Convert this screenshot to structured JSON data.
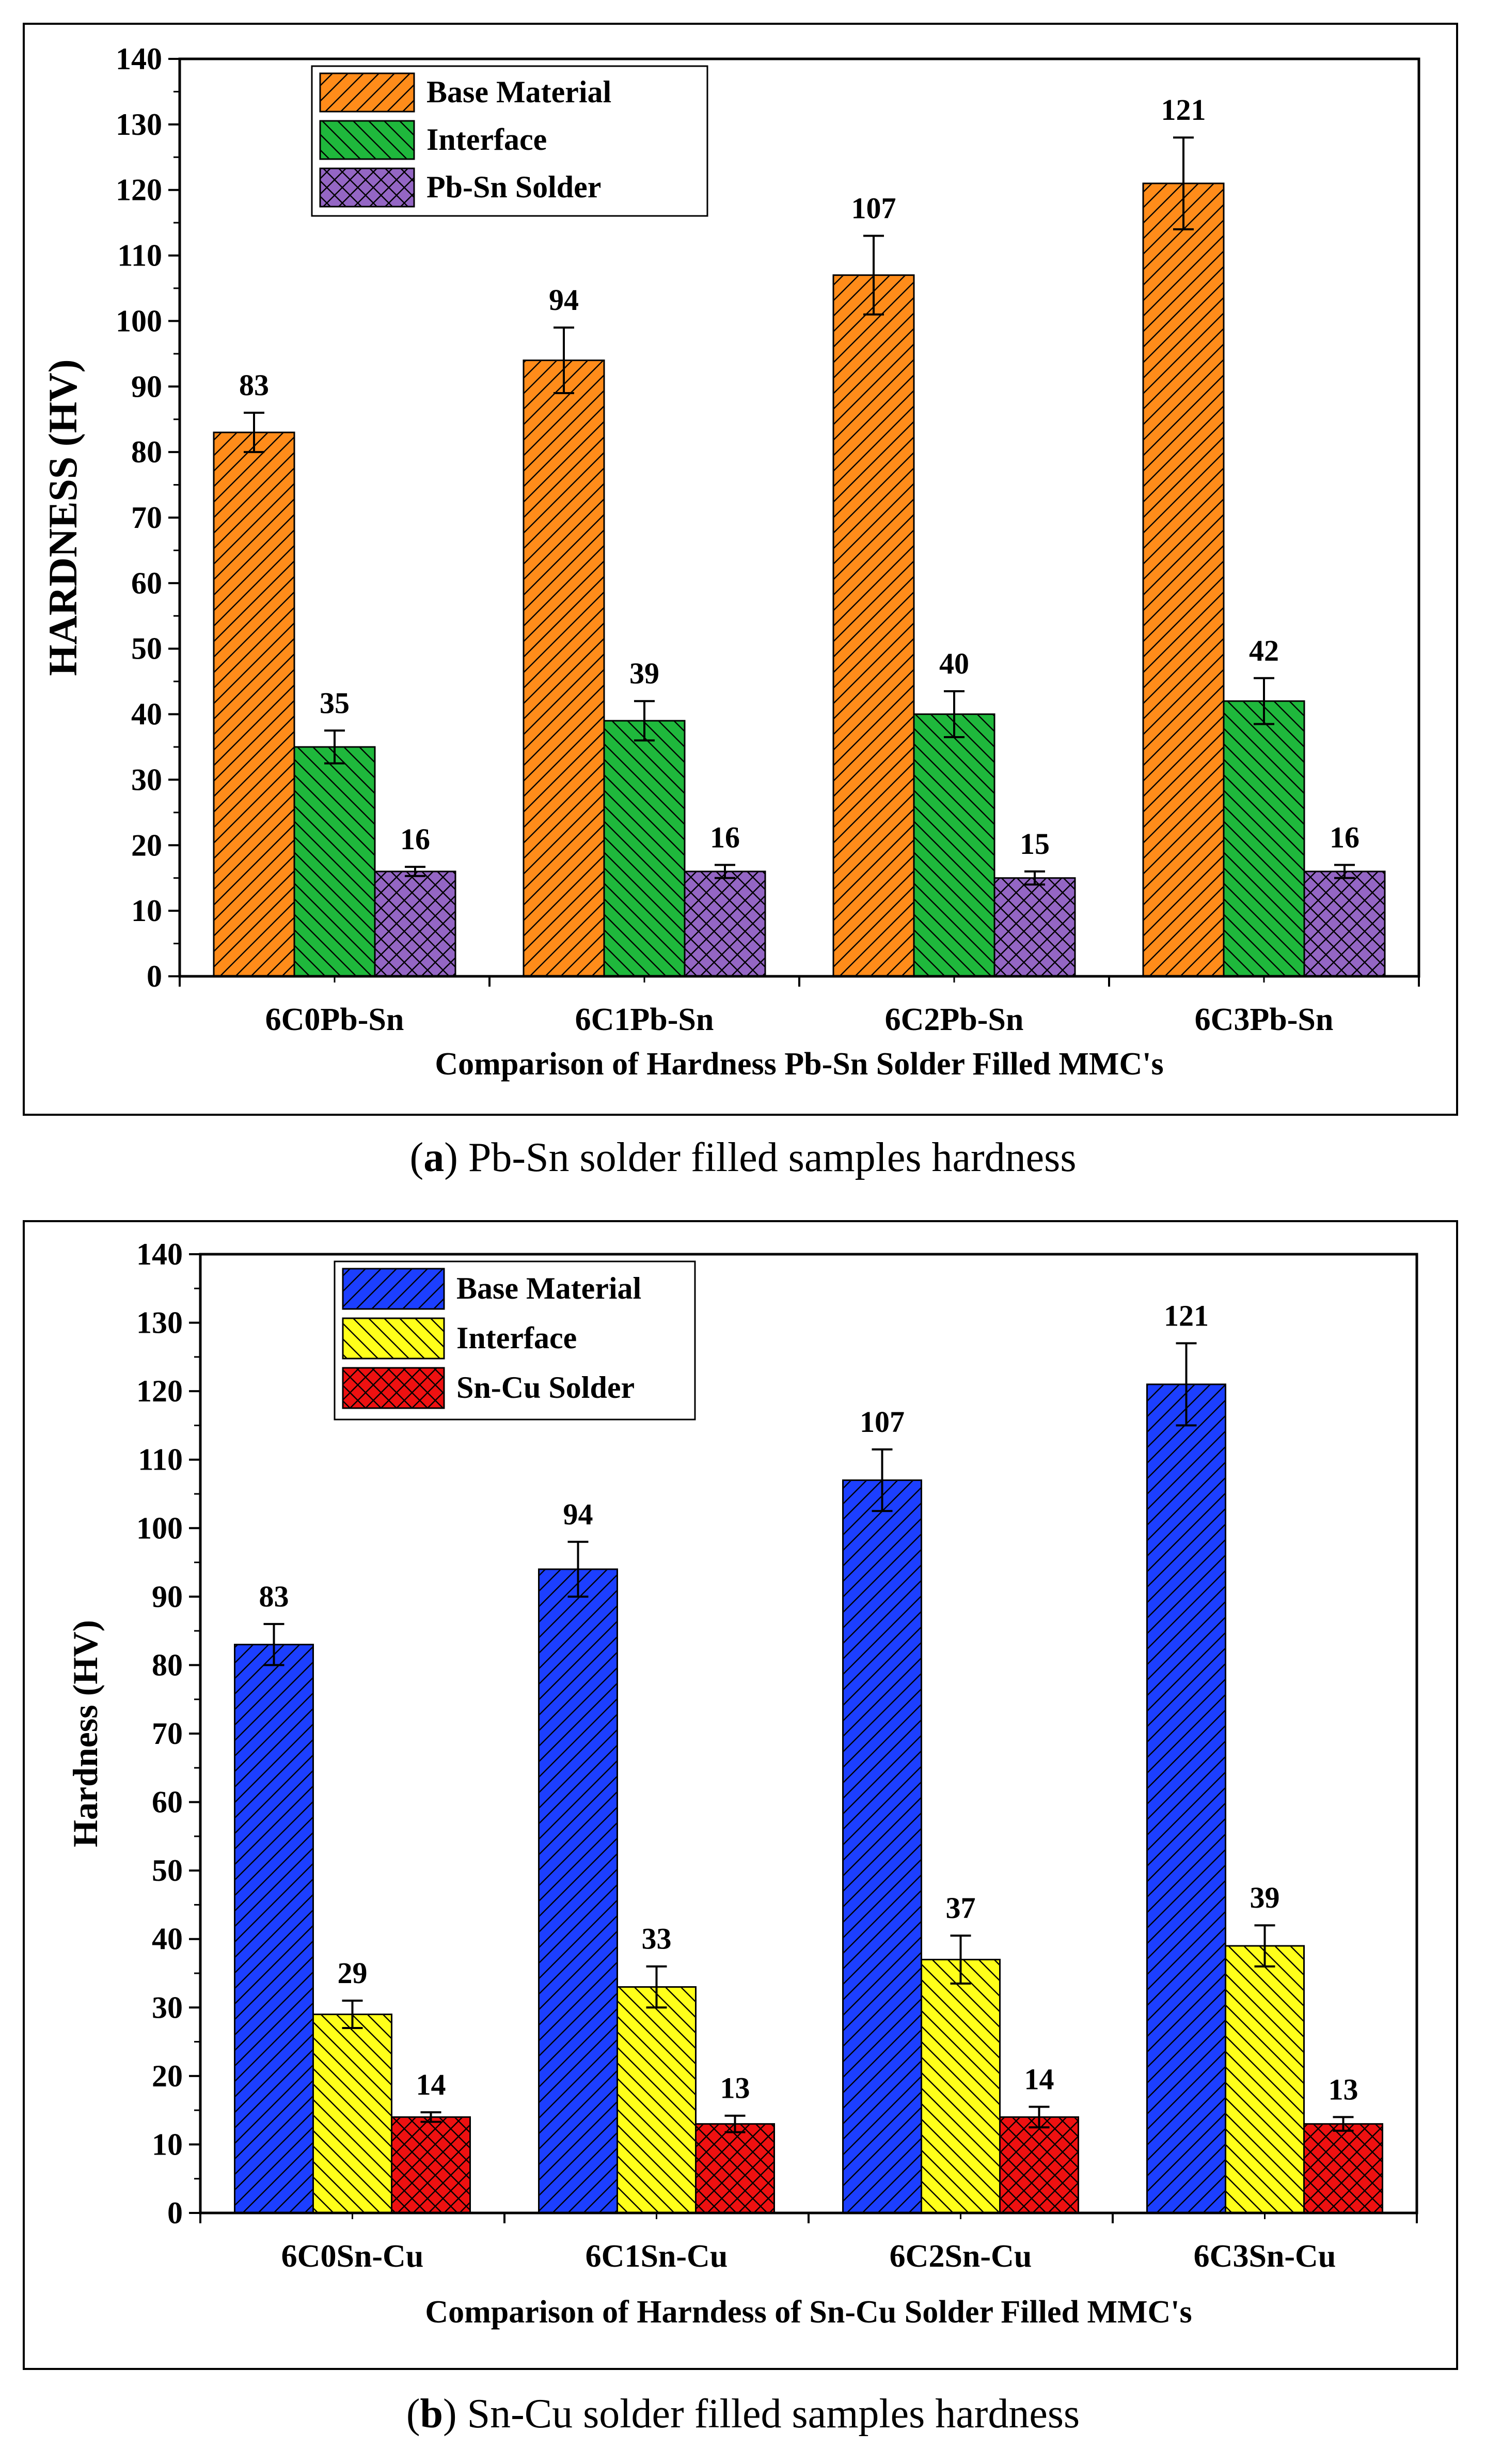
{
  "chart_data": [
    {
      "type": "bar",
      "title": "",
      "xlabel": "Comparison of Hardness Pb-Sn Solder Filled MMC's",
      "ylabel": "HARDNESS (HV)",
      "ylim": [
        0,
        140
      ],
      "yticks": [
        "0",
        "10",
        "20",
        "30",
        "40",
        "50",
        "60",
        "70",
        "80",
        "90",
        "100",
        "110",
        "120",
        "130",
        "140"
      ],
      "categories": [
        "6C0Pb-Sn",
        "6C1Pb-Sn",
        "6C2Pb-Sn",
        "6C3Pb-Sn"
      ],
      "legend_position": "top-left",
      "series": [
        {
          "name": "Base Material",
          "values": [
            83,
            94,
            107,
            121
          ],
          "errors": [
            3,
            5,
            6,
            7
          ],
          "color": "#ff8c1a",
          "pattern": "diag-right"
        },
        {
          "name": "Interface",
          "values": [
            35,
            39,
            40,
            42
          ],
          "errors": [
            2.5,
            3,
            3.5,
            3.5
          ],
          "color": "#1fb83c",
          "pattern": "diag-left"
        },
        {
          "name": "Pb-Sn Solder",
          "values": [
            16,
            16,
            15,
            16
          ],
          "errors": [
            0.7,
            1,
            1,
            1
          ],
          "color": "#9466c4",
          "pattern": "cross"
        }
      ],
      "caption_letter": "a",
      "caption_text": "Pb-Sn solder filled samples hardness"
    },
    {
      "type": "bar",
      "title": "",
      "xlabel": "Comparison of Harndess of Sn-Cu Solder Filled MMC's",
      "ylabel": "Hardness (HV)",
      "ylim": [
        0,
        140
      ],
      "yticks": [
        "0",
        "10",
        "20",
        "30",
        "40",
        "50",
        "60",
        "70",
        "80",
        "90",
        "100",
        "110",
        "120",
        "130",
        "140"
      ],
      "categories": [
        "6C0Sn-Cu",
        "6C1Sn-Cu",
        "6C2Sn-Cu",
        "6C3Sn-Cu"
      ],
      "legend_position": "top-left",
      "series": [
        {
          "name": "Base Material",
          "values": [
            83,
            94,
            107,
            121
          ],
          "errors": [
            3,
            4,
            4.5,
            6
          ],
          "color": "#1c3fff",
          "pattern": "diag-right"
        },
        {
          "name": "Interface",
          "values": [
            29,
            33,
            37,
            39
          ],
          "errors": [
            2,
            3,
            3.5,
            3
          ],
          "color": "#ffff1a",
          "pattern": "diag-left"
        },
        {
          "name": "Sn-Cu Solder",
          "values": [
            14,
            13,
            14,
            13
          ],
          "errors": [
            0.7,
            1.2,
            1.5,
            1
          ],
          "color": "#ee1111",
          "pattern": "cross"
        }
      ],
      "caption_letter": "b",
      "caption_text": "Sn-Cu solder filled samples hardness"
    }
  ]
}
